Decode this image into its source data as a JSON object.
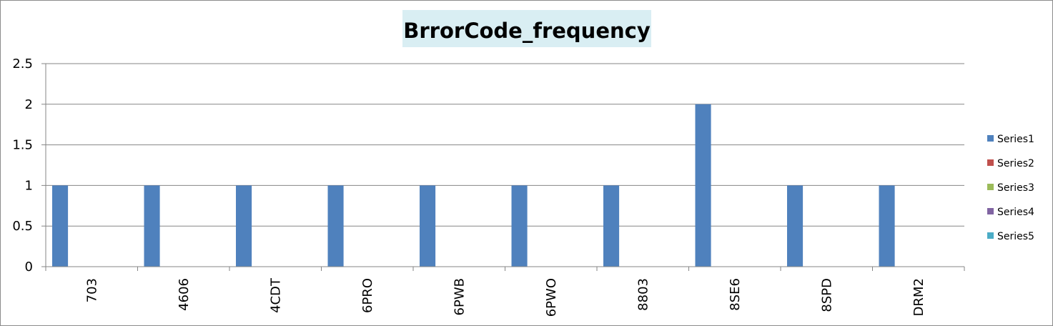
{
  "chart_data": {
    "type": "bar",
    "title": "BrrorCode_frequency",
    "xlabel": "",
    "ylabel": "",
    "categories": [
      "703",
      "4606",
      "4CDT",
      "6PRO",
      "6PWB",
      "6PWO",
      "8803",
      "8SE6",
      "8SPD",
      "DRM2"
    ],
    "series": [
      {
        "name": "Series1",
        "color": "#4f81bd",
        "values": [
          1,
          1,
          1,
          1,
          1,
          1,
          1,
          2,
          1,
          1
        ]
      },
      {
        "name": "Series2",
        "color": "#c0504d",
        "values": [
          null,
          null,
          null,
          null,
          null,
          null,
          null,
          null,
          null,
          null
        ]
      },
      {
        "name": "Series3",
        "color": "#9bbb59",
        "values": [
          null,
          null,
          null,
          null,
          null,
          null,
          null,
          null,
          null,
          null
        ]
      },
      {
        "name": "Series4",
        "color": "#8064a2",
        "values": [
          null,
          null,
          null,
          null,
          null,
          null,
          null,
          null,
          null,
          null
        ]
      },
      {
        "name": "Series5",
        "color": "#4bacc6",
        "values": [
          null,
          null,
          null,
          null,
          null,
          null,
          null,
          null,
          null,
          null
        ]
      }
    ],
    "yticks": [
      "0",
      "0.5",
      "1",
      "1.5",
      "2",
      "2.5"
    ],
    "ylim": [
      0,
      2.5
    ],
    "grid": true,
    "legend_position": "right"
  }
}
